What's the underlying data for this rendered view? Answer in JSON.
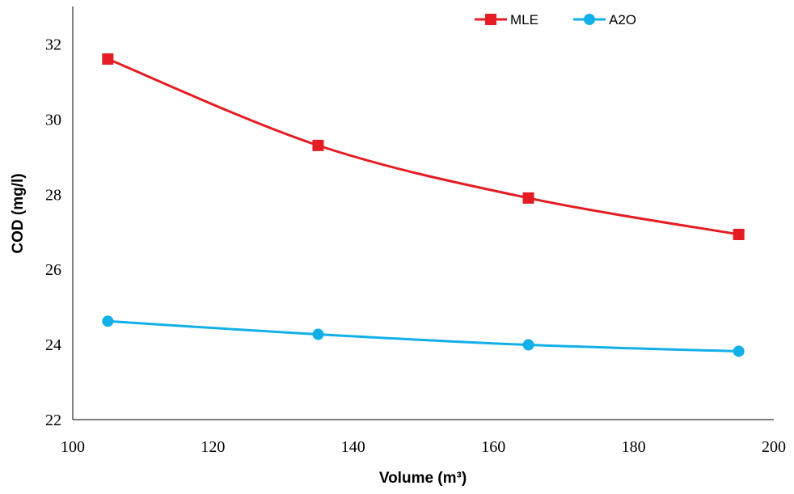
{
  "chart_data": {
    "type": "line",
    "title": "",
    "xlabel": "Volume (m³)",
    "ylabel": "COD (mg/l)",
    "xlim": [
      100,
      200
    ],
    "ylim": [
      22,
      33
    ],
    "xticks": [
      100,
      120,
      140,
      160,
      180,
      200
    ],
    "yticks": [
      22,
      24,
      26,
      28,
      30,
      32
    ],
    "x": [
      105,
      135,
      165,
      195
    ],
    "grid": false,
    "legend": "top-right",
    "series": [
      {
        "name": "MLE",
        "values": [
          31.6,
          29.3,
          27.9,
          26.93
        ],
        "color": "#e51c23",
        "marker": "square"
      },
      {
        "name": "A2O",
        "values": [
          24.62,
          24.27,
          23.99,
          23.82
        ],
        "color": "#12b0e8",
        "marker": "circle"
      }
    ]
  }
}
